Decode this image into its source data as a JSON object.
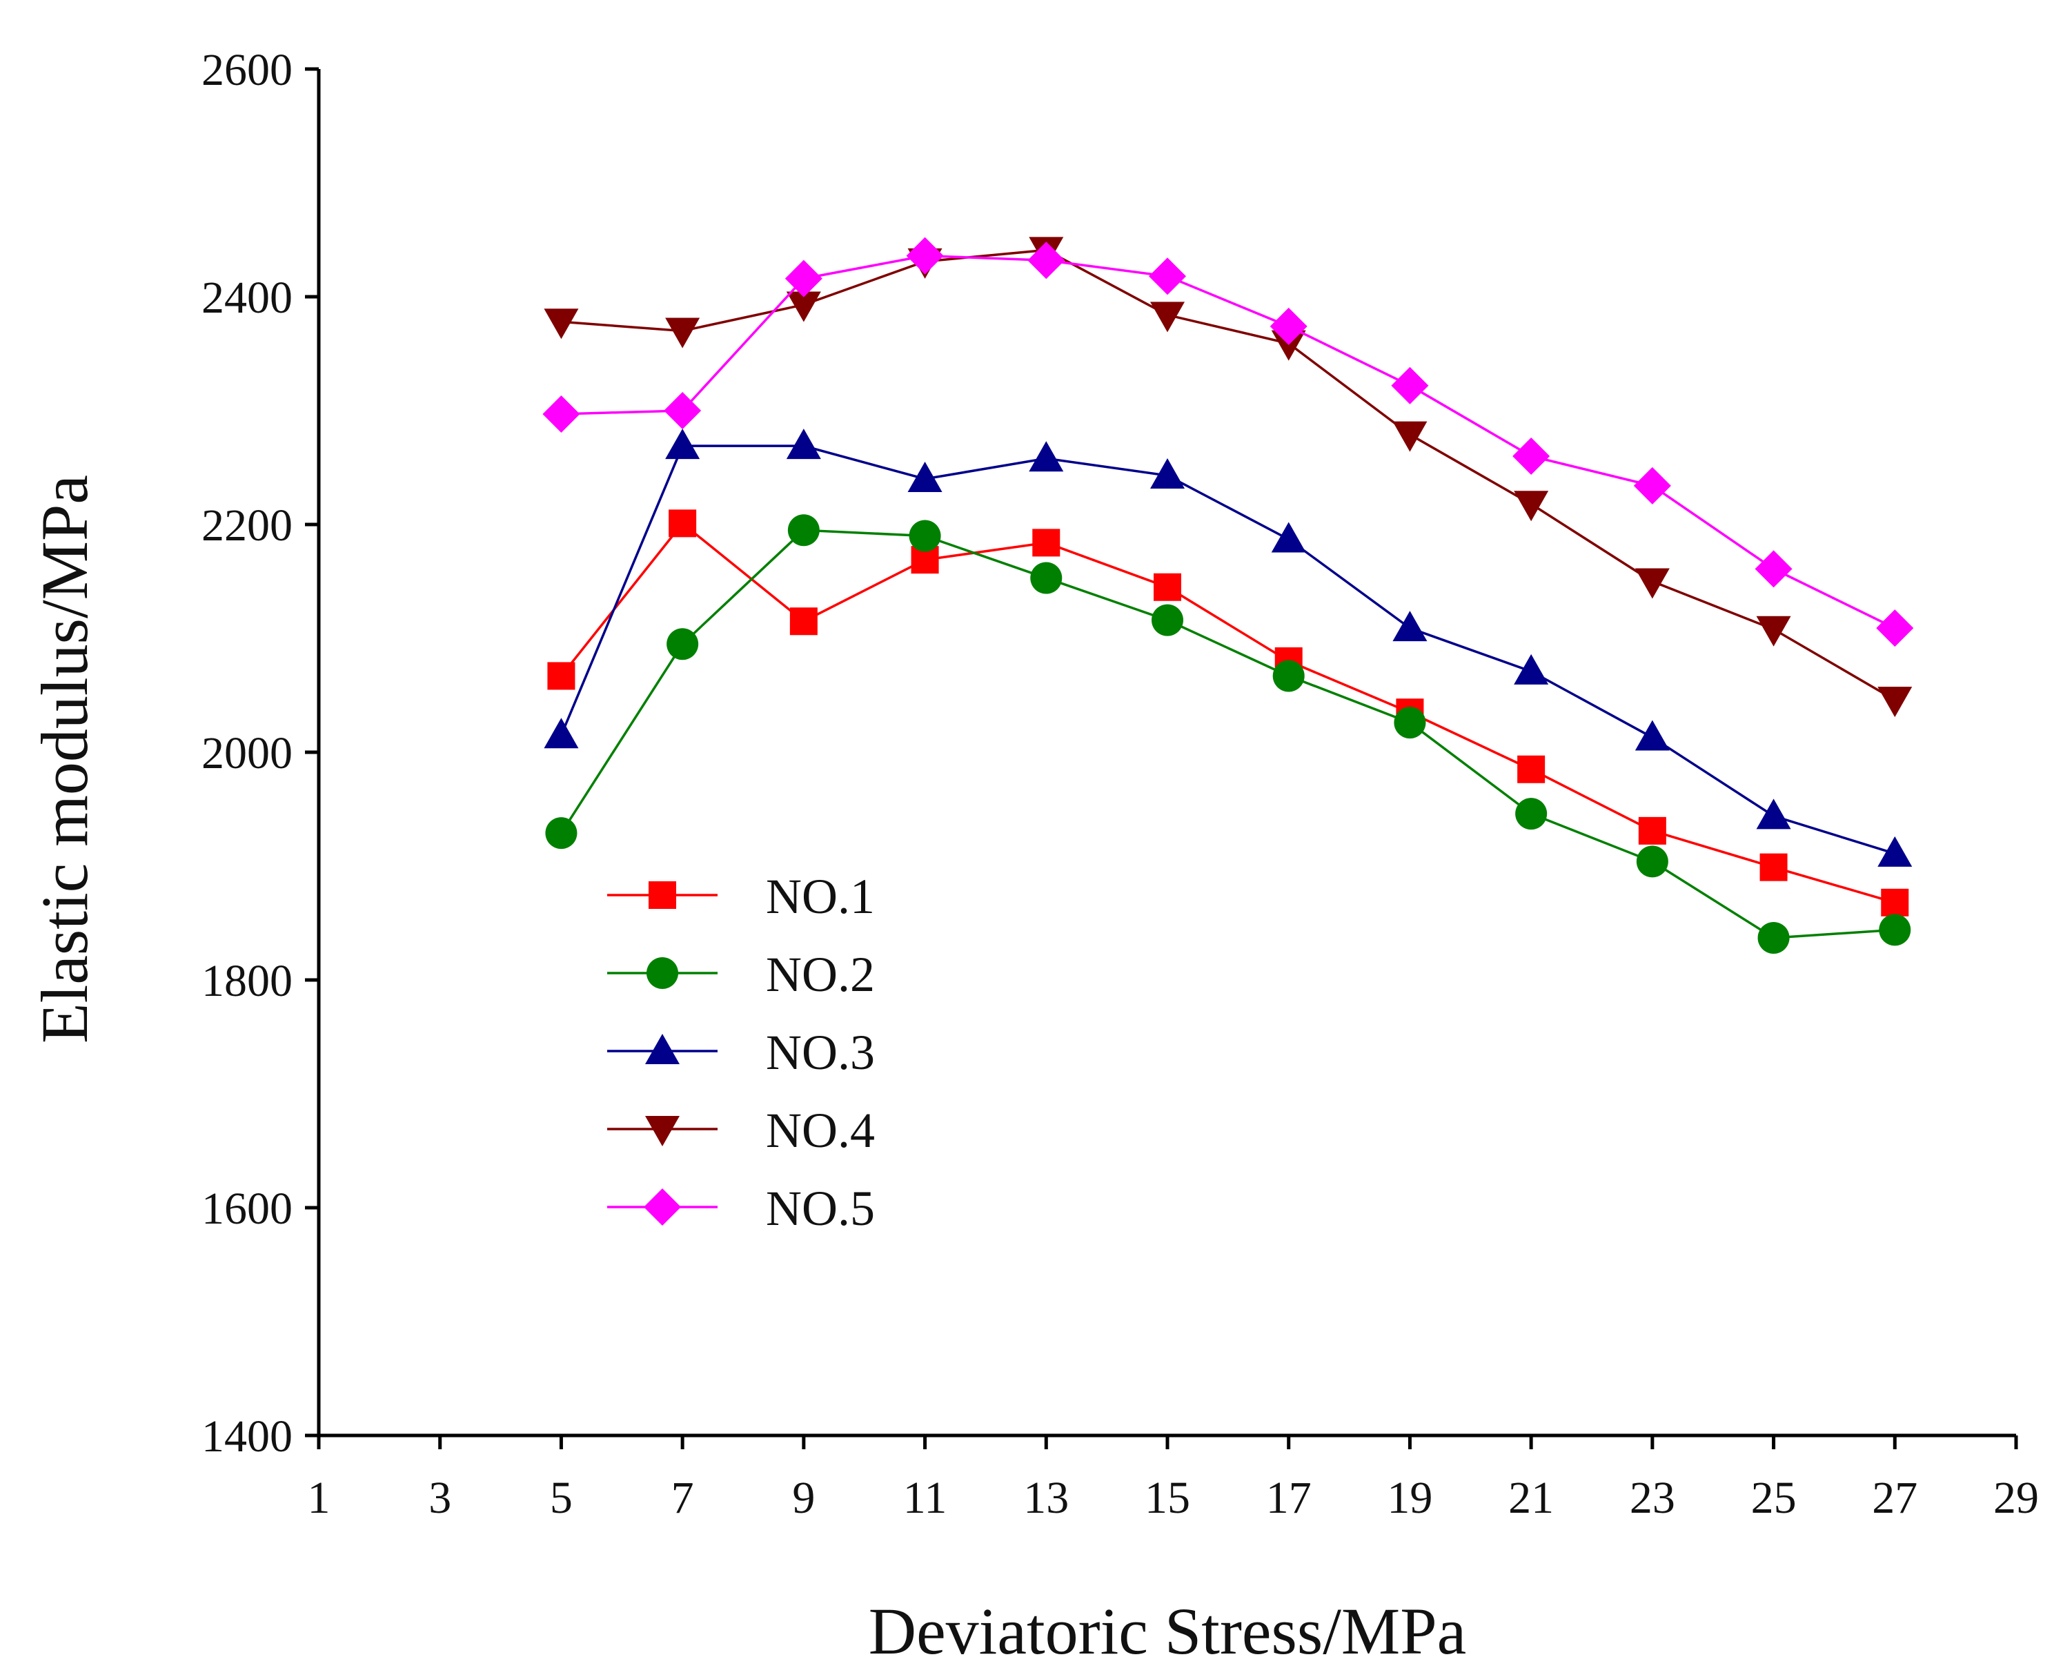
{
  "chart_data": {
    "type": "line",
    "title": "",
    "xlabel": "Deviatoric Stress/MPa",
    "ylabel": "Elastic modulus/MPa",
    "xlim": [
      1,
      29
    ],
    "ylim": [
      1400,
      2600
    ],
    "x_ticks": [
      1,
      3,
      5,
      7,
      9,
      11,
      13,
      15,
      17,
      19,
      21,
      23,
      25,
      27,
      29
    ],
    "x_tick_labels": [
      "1",
      "3",
      "5",
      "7",
      "9",
      "11",
      "13",
      "15",
      "17",
      "19",
      "21",
      "23",
      "25",
      "27",
      "29"
    ],
    "y_ticks": [
      1400,
      1600,
      1800,
      2000,
      2200,
      2400,
      2600
    ],
    "y_tick_labels": [
      "1400",
      "1600",
      "1800",
      "2000",
      "2200",
      "2400",
      "2600"
    ],
    "grid": false,
    "legend_position": "lower-left",
    "x": [
      5,
      7,
      9,
      11,
      13,
      15,
      17,
      19,
      21,
      23,
      25,
      27
    ],
    "series": [
      {
        "name": "NO.1",
        "color": "#ff0000",
        "marker": "square",
        "values": [
          2067,
          2201,
          2115,
          2169,
          2184,
          2145,
          2080,
          2035,
          1985,
          1931,
          1899,
          1868
        ]
      },
      {
        "name": "NO.2",
        "color": "#008000",
        "marker": "circle",
        "values": [
          1929,
          2095,
          2195,
          2190,
          2153,
          2116,
          2067,
          2026,
          1946,
          1904,
          1837,
          1844
        ]
      },
      {
        "name": "NO.3",
        "color": "#00008b",
        "marker": "triangle-up",
        "values": [
          2015,
          2269,
          2269,
          2240,
          2258,
          2243,
          2187,
          2109,
          2071,
          2013,
          1944,
          1911
        ]
      },
      {
        "name": "NO.4",
        "color": "#800000",
        "marker": "triangle-down",
        "values": [
          2378,
          2370,
          2393,
          2431,
          2441,
          2384,
          2359,
          2279,
          2218,
          2150,
          2108,
          2046
        ]
      },
      {
        "name": "NO.5",
        "color": "#ff00ff",
        "marker": "diamond",
        "values": [
          2297,
          2300,
          2416,
          2436,
          2432,
          2418,
          2374,
          2322,
          2260,
          2234,
          2161,
          2109
        ]
      }
    ]
  }
}
